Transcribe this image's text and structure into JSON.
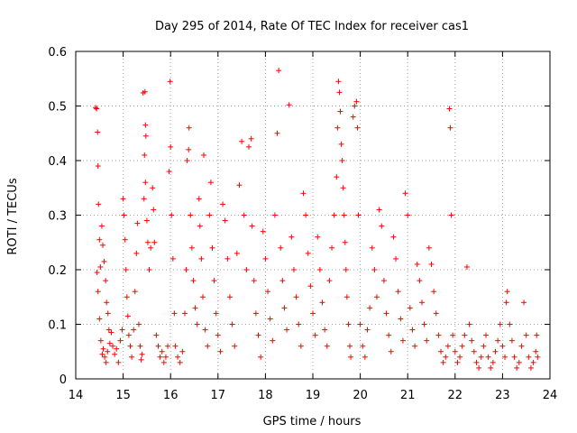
{
  "chart_data": {
    "type": "scatter",
    "title": "Day 295 of 2014, Rate Of TEC Index for receiver cas1",
    "xlabel": "GPS time / hours",
    "ylabel": "ROTI / TECUs",
    "xlim": [
      14,
      24
    ],
    "ylim": [
      0,
      0.6
    ],
    "xticks": [
      "14",
      "15",
      "16",
      "17",
      "18",
      "19",
      "20",
      "21",
      "22",
      "23",
      "24"
    ],
    "yticks": [
      "0",
      "0.1",
      "0.2",
      "0.3",
      "0.4",
      "0.5",
      "0.6"
    ],
    "grid": true,
    "marker": "plus",
    "color": "#ff0000",
    "series": [
      {
        "name": "cas1",
        "points": [
          [
            14.42,
            0.497
          ],
          [
            14.44,
            0.495
          ],
          [
            14.46,
            0.452
          ],
          [
            14.47,
            0.39
          ],
          [
            14.48,
            0.32
          ],
          [
            14.45,
            0.195
          ],
          [
            14.47,
            0.16
          ],
          [
            14.5,
            0.255
          ],
          [
            14.52,
            0.205
          ],
          [
            14.55,
            0.28
          ],
          [
            14.57,
            0.245
          ],
          [
            14.6,
            0.215
          ],
          [
            14.63,
            0.18
          ],
          [
            14.65,
            0.14
          ],
          [
            14.68,
            0.12
          ],
          [
            14.7,
            0.09
          ],
          [
            14.5,
            0.11
          ],
          [
            14.53,
            0.07
          ],
          [
            14.56,
            0.045
          ],
          [
            14.58,
            0.055
          ],
          [
            14.61,
            0.04
          ],
          [
            14.64,
            0.03
          ],
          [
            14.67,
            0.05
          ],
          [
            14.72,
            0.065
          ],
          [
            14.75,
            0.085
          ],
          [
            14.78,
            0.06
          ],
          [
            14.82,
            0.045
          ],
          [
            14.86,
            0.055
          ],
          [
            14.9,
            0.03
          ],
          [
            14.94,
            0.07
          ],
          [
            14.98,
            0.09
          ],
          [
            15.0,
            0.33
          ],
          [
            15.02,
            0.3
          ],
          [
            15.04,
            0.255
          ],
          [
            15.06,
            0.2
          ],
          [
            15.08,
            0.15
          ],
          [
            15.1,
            0.115
          ],
          [
            15.12,
            0.08
          ],
          [
            15.15,
            0.06
          ],
          [
            15.18,
            0.04
          ],
          [
            15.22,
            0.09
          ],
          [
            15.25,
            0.16
          ],
          [
            15.28,
            0.23
          ],
          [
            15.3,
            0.285
          ],
          [
            15.33,
            0.1
          ],
          [
            15.36,
            0.06
          ],
          [
            15.38,
            0.035
          ],
          [
            15.4,
            0.045
          ],
          [
            15.42,
            0.524
          ],
          [
            15.46,
            0.526
          ],
          [
            15.47,
            0.465
          ],
          [
            15.48,
            0.445
          ],
          [
            15.45,
            0.41
          ],
          [
            15.47,
            0.36
          ],
          [
            15.44,
            0.33
          ],
          [
            15.5,
            0.29
          ],
          [
            15.52,
            0.25
          ],
          [
            15.55,
            0.2
          ],
          [
            15.58,
            0.24
          ],
          [
            15.62,
            0.35
          ],
          [
            15.64,
            0.31
          ],
          [
            15.66,
            0.25
          ],
          [
            15.7,
            0.08
          ],
          [
            15.74,
            0.06
          ],
          [
            15.78,
            0.04
          ],
          [
            15.82,
            0.05
          ],
          [
            15.86,
            0.03
          ],
          [
            15.9,
            0.04
          ],
          [
            15.94,
            0.06
          ],
          [
            15.97,
            0.38
          ],
          [
            15.99,
            0.545
          ],
          [
            16.0,
            0.425
          ],
          [
            16.02,
            0.3
          ],
          [
            16.05,
            0.22
          ],
          [
            16.08,
            0.12
          ],
          [
            16.1,
            0.06
          ],
          [
            16.15,
            0.04
          ],
          [
            16.2,
            0.03
          ],
          [
            16.25,
            0.05
          ],
          [
            16.3,
            0.12
          ],
          [
            16.33,
            0.2
          ],
          [
            16.35,
            0.4
          ],
          [
            16.38,
            0.42
          ],
          [
            16.39,
            0.46
          ],
          [
            16.42,
            0.3
          ],
          [
            16.45,
            0.24
          ],
          [
            16.48,
            0.18
          ],
          [
            16.52,
            0.13
          ],
          [
            16.56,
            0.1
          ],
          [
            16.6,
            0.33
          ],
          [
            16.62,
            0.28
          ],
          [
            16.65,
            0.22
          ],
          [
            16.68,
            0.15
          ],
          [
            16.7,
            0.41
          ],
          [
            16.73,
            0.09
          ],
          [
            16.78,
            0.06
          ],
          [
            16.82,
            0.3
          ],
          [
            16.85,
            0.36
          ],
          [
            16.88,
            0.24
          ],
          [
            16.92,
            0.18
          ],
          [
            16.96,
            0.12
          ],
          [
            17.0,
            0.08
          ],
          [
            17.05,
            0.05
          ],
          [
            17.1,
            0.32
          ],
          [
            17.15,
            0.29
          ],
          [
            17.2,
            0.22
          ],
          [
            17.25,
            0.15
          ],
          [
            17.3,
            0.1
          ],
          [
            17.35,
            0.06
          ],
          [
            17.4,
            0.23
          ],
          [
            17.45,
            0.355
          ],
          [
            17.5,
            0.435
          ],
          [
            17.55,
            0.3
          ],
          [
            17.6,
            0.2
          ],
          [
            17.65,
            0.425
          ],
          [
            17.7,
            0.44
          ],
          [
            17.72,
            0.28
          ],
          [
            17.76,
            0.18
          ],
          [
            17.8,
            0.12
          ],
          [
            17.85,
            0.08
          ],
          [
            17.9,
            0.04
          ],
          [
            17.95,
            0.27
          ],
          [
            18.0,
            0.22
          ],
          [
            18.05,
            0.16
          ],
          [
            18.1,
            0.11
          ],
          [
            18.15,
            0.07
          ],
          [
            18.2,
            0.3
          ],
          [
            18.25,
            0.45
          ],
          [
            18.28,
            0.565
          ],
          [
            18.32,
            0.24
          ],
          [
            18.36,
            0.18
          ],
          [
            18.4,
            0.13
          ],
          [
            18.45,
            0.09
          ],
          [
            18.5,
            0.502
          ],
          [
            18.55,
            0.26
          ],
          [
            18.6,
            0.2
          ],
          [
            18.65,
            0.15
          ],
          [
            18.7,
            0.1
          ],
          [
            18.75,
            0.06
          ],
          [
            18.8,
            0.34
          ],
          [
            18.85,
            0.3
          ],
          [
            18.9,
            0.23
          ],
          [
            18.95,
            0.17
          ],
          [
            19.0,
            0.12
          ],
          [
            19.05,
            0.08
          ],
          [
            19.1,
            0.26
          ],
          [
            19.15,
            0.2
          ],
          [
            19.2,
            0.14
          ],
          [
            19.25,
            0.09
          ],
          [
            19.3,
            0.06
          ],
          [
            19.35,
            0.18
          ],
          [
            19.4,
            0.24
          ],
          [
            19.45,
            0.3
          ],
          [
            19.5,
            0.37
          ],
          [
            19.52,
            0.46
          ],
          [
            19.54,
            0.545
          ],
          [
            19.56,
            0.525
          ],
          [
            19.58,
            0.49
          ],
          [
            19.6,
            0.43
          ],
          [
            19.62,
            0.4
          ],
          [
            19.64,
            0.35
          ],
          [
            19.66,
            0.3
          ],
          [
            19.68,
            0.25
          ],
          [
            19.7,
            0.2
          ],
          [
            19.72,
            0.15
          ],
          [
            19.75,
            0.1
          ],
          [
            19.78,
            0.06
          ],
          [
            19.8,
            0.04
          ],
          [
            19.85,
            0.48
          ],
          [
            19.88,
            0.5
          ],
          [
            19.92,
            0.508
          ],
          [
            19.94,
            0.46
          ],
          [
            19.96,
            0.3
          ],
          [
            20.0,
            0.1
          ],
          [
            20.05,
            0.06
          ],
          [
            20.1,
            0.04
          ],
          [
            20.15,
            0.09
          ],
          [
            20.2,
            0.13
          ],
          [
            20.25,
            0.24
          ],
          [
            20.3,
            0.2
          ],
          [
            20.35,
            0.15
          ],
          [
            20.4,
            0.31
          ],
          [
            20.45,
            0.28
          ],
          [
            20.5,
            0.18
          ],
          [
            20.55,
            0.12
          ],
          [
            20.6,
            0.08
          ],
          [
            20.65,
            0.05
          ],
          [
            20.7,
            0.26
          ],
          [
            20.75,
            0.22
          ],
          [
            20.8,
            0.16
          ],
          [
            20.85,
            0.11
          ],
          [
            20.9,
            0.07
          ],
          [
            20.95,
            0.34
          ],
          [
            21.0,
            0.3
          ],
          [
            21.05,
            0.13
          ],
          [
            21.1,
            0.09
          ],
          [
            21.15,
            0.06
          ],
          [
            21.2,
            0.21
          ],
          [
            21.25,
            0.18
          ],
          [
            21.3,
            0.14
          ],
          [
            21.35,
            0.1
          ],
          [
            21.4,
            0.07
          ],
          [
            21.45,
            0.24
          ],
          [
            21.5,
            0.21
          ],
          [
            21.55,
            0.16
          ],
          [
            21.6,
            0.12
          ],
          [
            21.65,
            0.08
          ],
          [
            21.7,
            0.05
          ],
          [
            21.75,
            0.03
          ],
          [
            21.8,
            0.04
          ],
          [
            21.85,
            0.06
          ],
          [
            21.88,
            0.495
          ],
          [
            21.9,
            0.46
          ],
          [
            21.92,
            0.3
          ],
          [
            21.95,
            0.08
          ],
          [
            22.0,
            0.05
          ],
          [
            22.05,
            0.03
          ],
          [
            22.1,
            0.04
          ],
          [
            22.15,
            0.06
          ],
          [
            22.2,
            0.08
          ],
          [
            22.25,
            0.205
          ],
          [
            22.3,
            0.1
          ],
          [
            22.35,
            0.07
          ],
          [
            22.4,
            0.05
          ],
          [
            22.45,
            0.03
          ],
          [
            22.5,
            0.02
          ],
          [
            22.55,
            0.04
          ],
          [
            22.6,
            0.06
          ],
          [
            22.65,
            0.08
          ],
          [
            22.7,
            0.04
          ],
          [
            22.75,
            0.02
          ],
          [
            22.8,
            0.03
          ],
          [
            22.85,
            0.05
          ],
          [
            22.9,
            0.07
          ],
          [
            22.95,
            0.1
          ],
          [
            23.0,
            0.06
          ],
          [
            23.05,
            0.04
          ],
          [
            23.08,
            0.14
          ],
          [
            23.1,
            0.16
          ],
          [
            23.15,
            0.1
          ],
          [
            23.2,
            0.07
          ],
          [
            23.25,
            0.04
          ],
          [
            23.3,
            0.02
          ],
          [
            23.35,
            0.03
          ],
          [
            23.4,
            0.06
          ],
          [
            23.45,
            0.14
          ],
          [
            23.5,
            0.08
          ],
          [
            23.55,
            0.04
          ],
          [
            23.6,
            0.02
          ],
          [
            23.65,
            0.03
          ],
          [
            23.7,
            0.05
          ],
          [
            23.72,
            0.08
          ],
          [
            23.74,
            0.04
          ]
        ]
      }
    ]
  }
}
